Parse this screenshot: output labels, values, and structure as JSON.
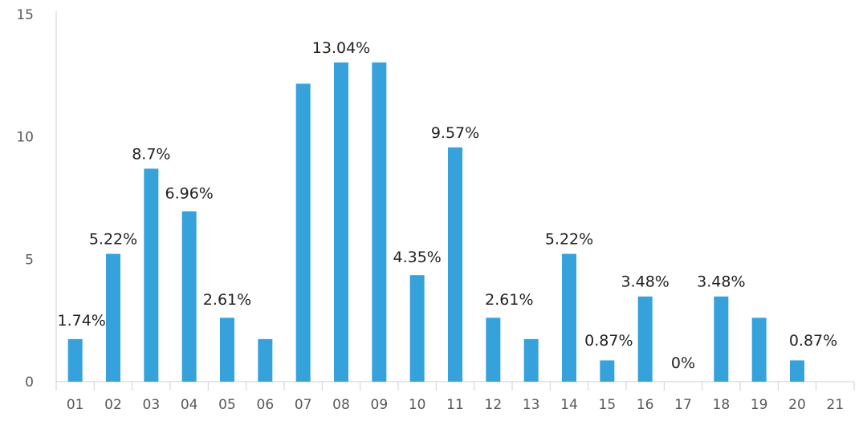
{
  "chart_data": {
    "type": "bar",
    "title": "",
    "xlabel": "",
    "ylabel": "",
    "ylim": [
      0,
      15
    ],
    "yticks": [
      0,
      5,
      10,
      15
    ],
    "grid": false,
    "legend": "none",
    "bar_color": "#35a2dc",
    "categories": [
      "01",
      "02",
      "03",
      "04",
      "05",
      "06",
      "07",
      "08",
      "09",
      "10",
      "11",
      "12",
      "13",
      "14",
      "15",
      "16",
      "17",
      "18",
      "19",
      "20",
      "21"
    ],
    "values": [
      1.74,
      5.22,
      8.7,
      6.96,
      2.61,
      1.74,
      12.17,
      13.04,
      13.04,
      4.35,
      9.57,
      2.61,
      1.74,
      5.22,
      0.87,
      3.48,
      0,
      3.48,
      2.61,
      0.87,
      0
    ],
    "data_labels": [
      "1.74%",
      "5.22%",
      "8.7%",
      "6.96%",
      "2.61%",
      null,
      null,
      "13.04%",
      null,
      "4.35%",
      "9.57%",
      "2.61%",
      null,
      "5.22%",
      "0.87%",
      "3.48%",
      "0%",
      "3.48%",
      null,
      "0.87%",
      null
    ]
  }
}
